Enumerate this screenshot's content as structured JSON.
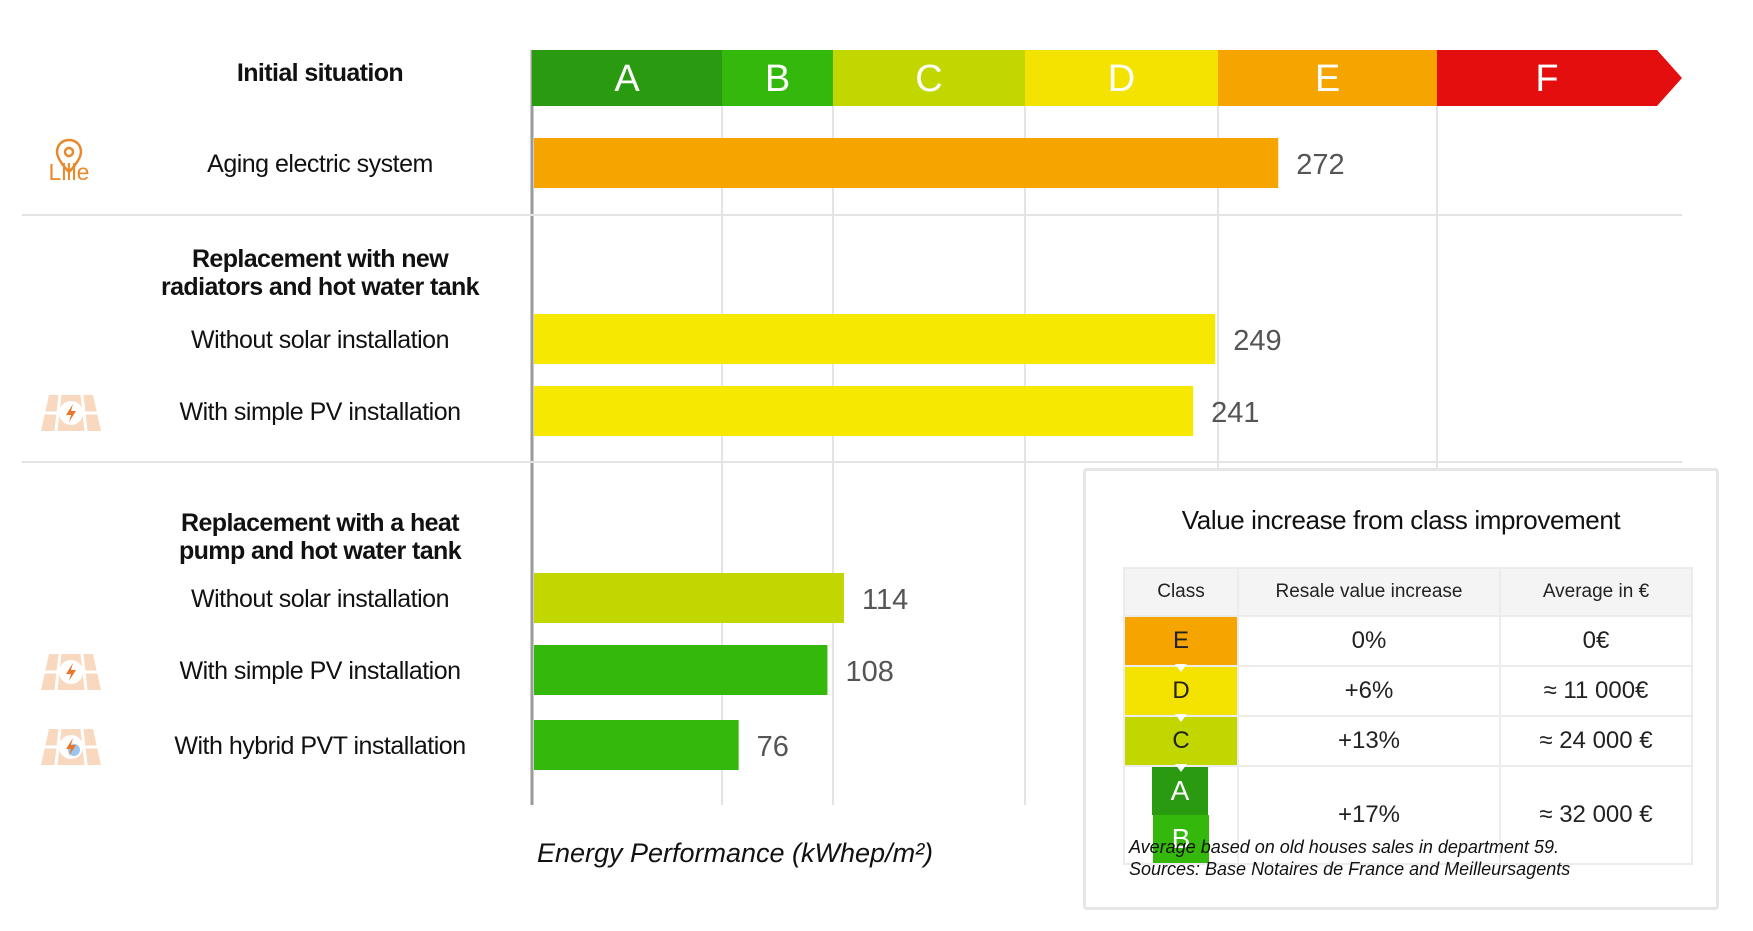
{
  "chart_data": {
    "type": "bar",
    "orientation": "horizontal",
    "title": "",
    "xlabel": "Energy Performance (kWhep/m²)",
    "location_label": "Lille",
    "energy_classes": [
      {
        "label": "A",
        "color": "#2a9a10"
      },
      {
        "label": "B",
        "color": "#35b80c"
      },
      {
        "label": "C",
        "color": "#c2d600"
      },
      {
        "label": "D",
        "color": "#f4e300"
      },
      {
        "label": "E",
        "color": "#f5a400"
      },
      {
        "label": "F",
        "color": "#e50e0e"
      }
    ],
    "class_bounds": [
      0,
      70,
      110,
      180,
      250,
      330,
      420
    ],
    "sections": [
      {
        "heading": "Initial situation",
        "rows": [
          {
            "label": "Aging electric system",
            "value": 272,
            "color": "#f5a400",
            "icon": ""
          }
        ]
      },
      {
        "heading": "Replacement with new radiators and hot water tank",
        "rows": [
          {
            "label": "Without solar installation",
            "value": 249,
            "color": "#f6e800",
            "icon": ""
          },
          {
            "label": "With simple PV installation",
            "value": 241,
            "color": "#f6e800",
            "icon": "pv-panel-icon"
          }
        ]
      },
      {
        "heading": "Replacement with a heat pump and hot water tank",
        "rows": [
          {
            "label": "Without solar installation",
            "value": 114,
            "color": "#c2d600",
            "icon": ""
          },
          {
            "label": "With simple PV installation",
            "value": 108,
            "color": "#35b80c",
            "icon": "pv-panel-icon"
          },
          {
            "label": "With hybrid PVT installation",
            "value": 76,
            "color": "#35b80c",
            "icon": "pvt-panel-icon"
          }
        ]
      }
    ]
  },
  "value_table": {
    "title": "Value increase from class improvement",
    "headers": [
      "Class",
      "Resale value increase",
      "Average in €"
    ],
    "rows": [
      {
        "class": "E",
        "increase": "0%",
        "average": "0€"
      },
      {
        "class": "D",
        "increase": "+6%",
        "average": "≈ 11 000€"
      },
      {
        "class": "C",
        "increase": "+13%",
        "average": "≈ 24 000 €"
      },
      {
        "class": "A B",
        "increase": "+17%",
        "average": "≈ 32 000 €"
      }
    ],
    "note_1": "Average based on old houses sales in department 59.",
    "note_2": "Sources: Base Notaires de France and Meilleursagents"
  }
}
